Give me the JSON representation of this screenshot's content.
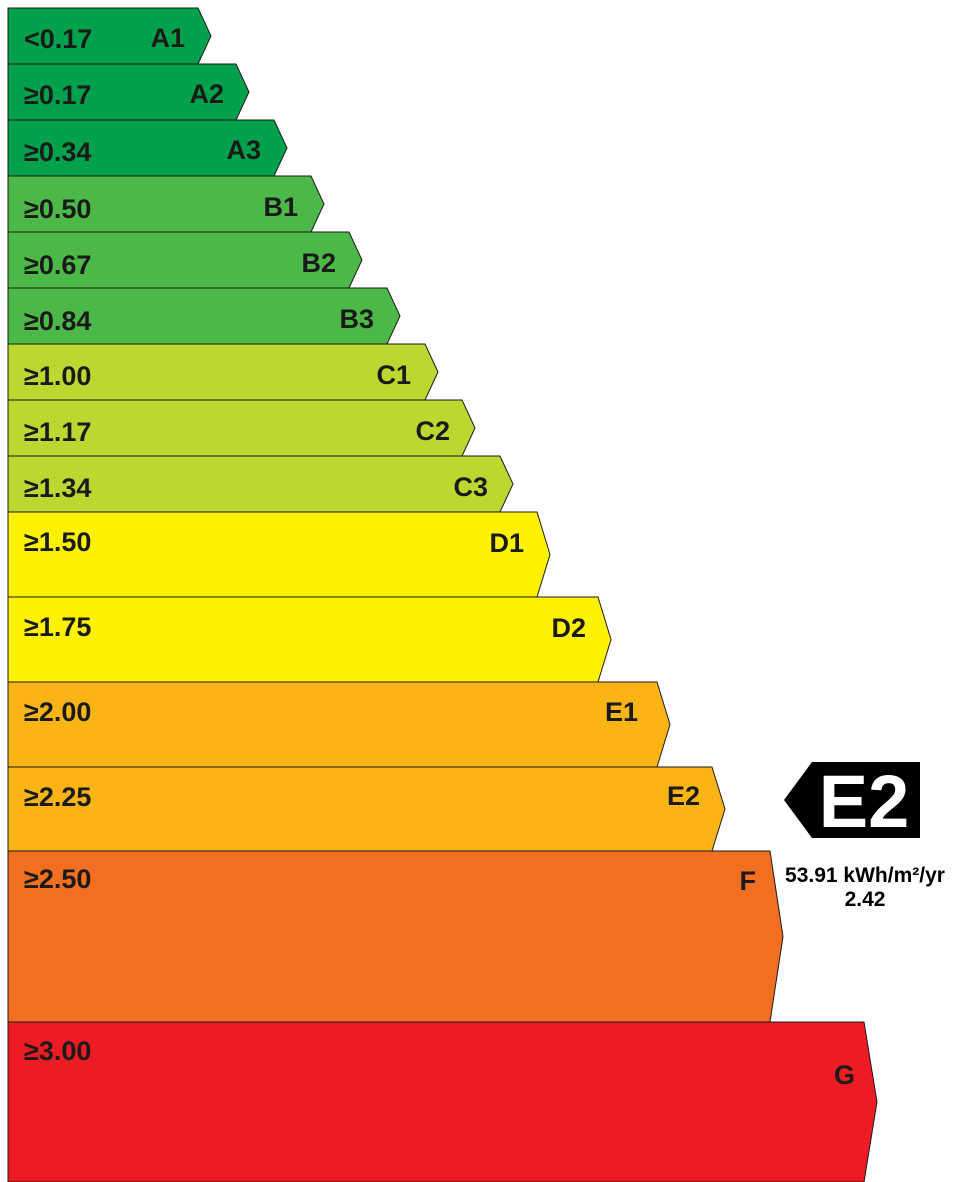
{
  "bands": [
    {
      "threshold": "<0.17",
      "grade": "A1",
      "color": "#00A04C"
    },
    {
      "threshold": "≥0.17",
      "grade": "A2",
      "color": "#00A04C"
    },
    {
      "threshold": "≥0.34",
      "grade": "A3",
      "color": "#00A04C"
    },
    {
      "threshold": "≥0.50",
      "grade": "B1",
      "color": "#4CB848"
    },
    {
      "threshold": "≥0.67",
      "grade": "B2",
      "color": "#4CB848"
    },
    {
      "threshold": "≥0.84",
      "grade": "B3",
      "color": "#4CB848"
    },
    {
      "threshold": "≥1.00",
      "grade": "C1",
      "color": "#BED630"
    },
    {
      "threshold": "≥1.17",
      "grade": "C2",
      "color": "#BED630"
    },
    {
      "threshold": "≥1.34",
      "grade": "C3",
      "color": "#BED630"
    },
    {
      "threshold": "≥1.50",
      "grade": "D1",
      "color": "#FFF200"
    },
    {
      "threshold": "≥1.75",
      "grade": "D2",
      "color": "#FFF200"
    },
    {
      "threshold": "≥2.00",
      "grade": "E1",
      "color": "#FBB416"
    },
    {
      "threshold": "≥2.25",
      "grade": "E2",
      "color": "#FBB416"
    },
    {
      "threshold": "≥2.50",
      "grade": "F",
      "color": "#F26F21"
    },
    {
      "threshold": "≥3.00",
      "grade": "G",
      "color": "#ED1C24"
    }
  ],
  "indicator": {
    "grade": "E2",
    "color": "#000000"
  },
  "result": {
    "energy": "53.91 kWh/m²/yr",
    "value": "2.42"
  }
}
